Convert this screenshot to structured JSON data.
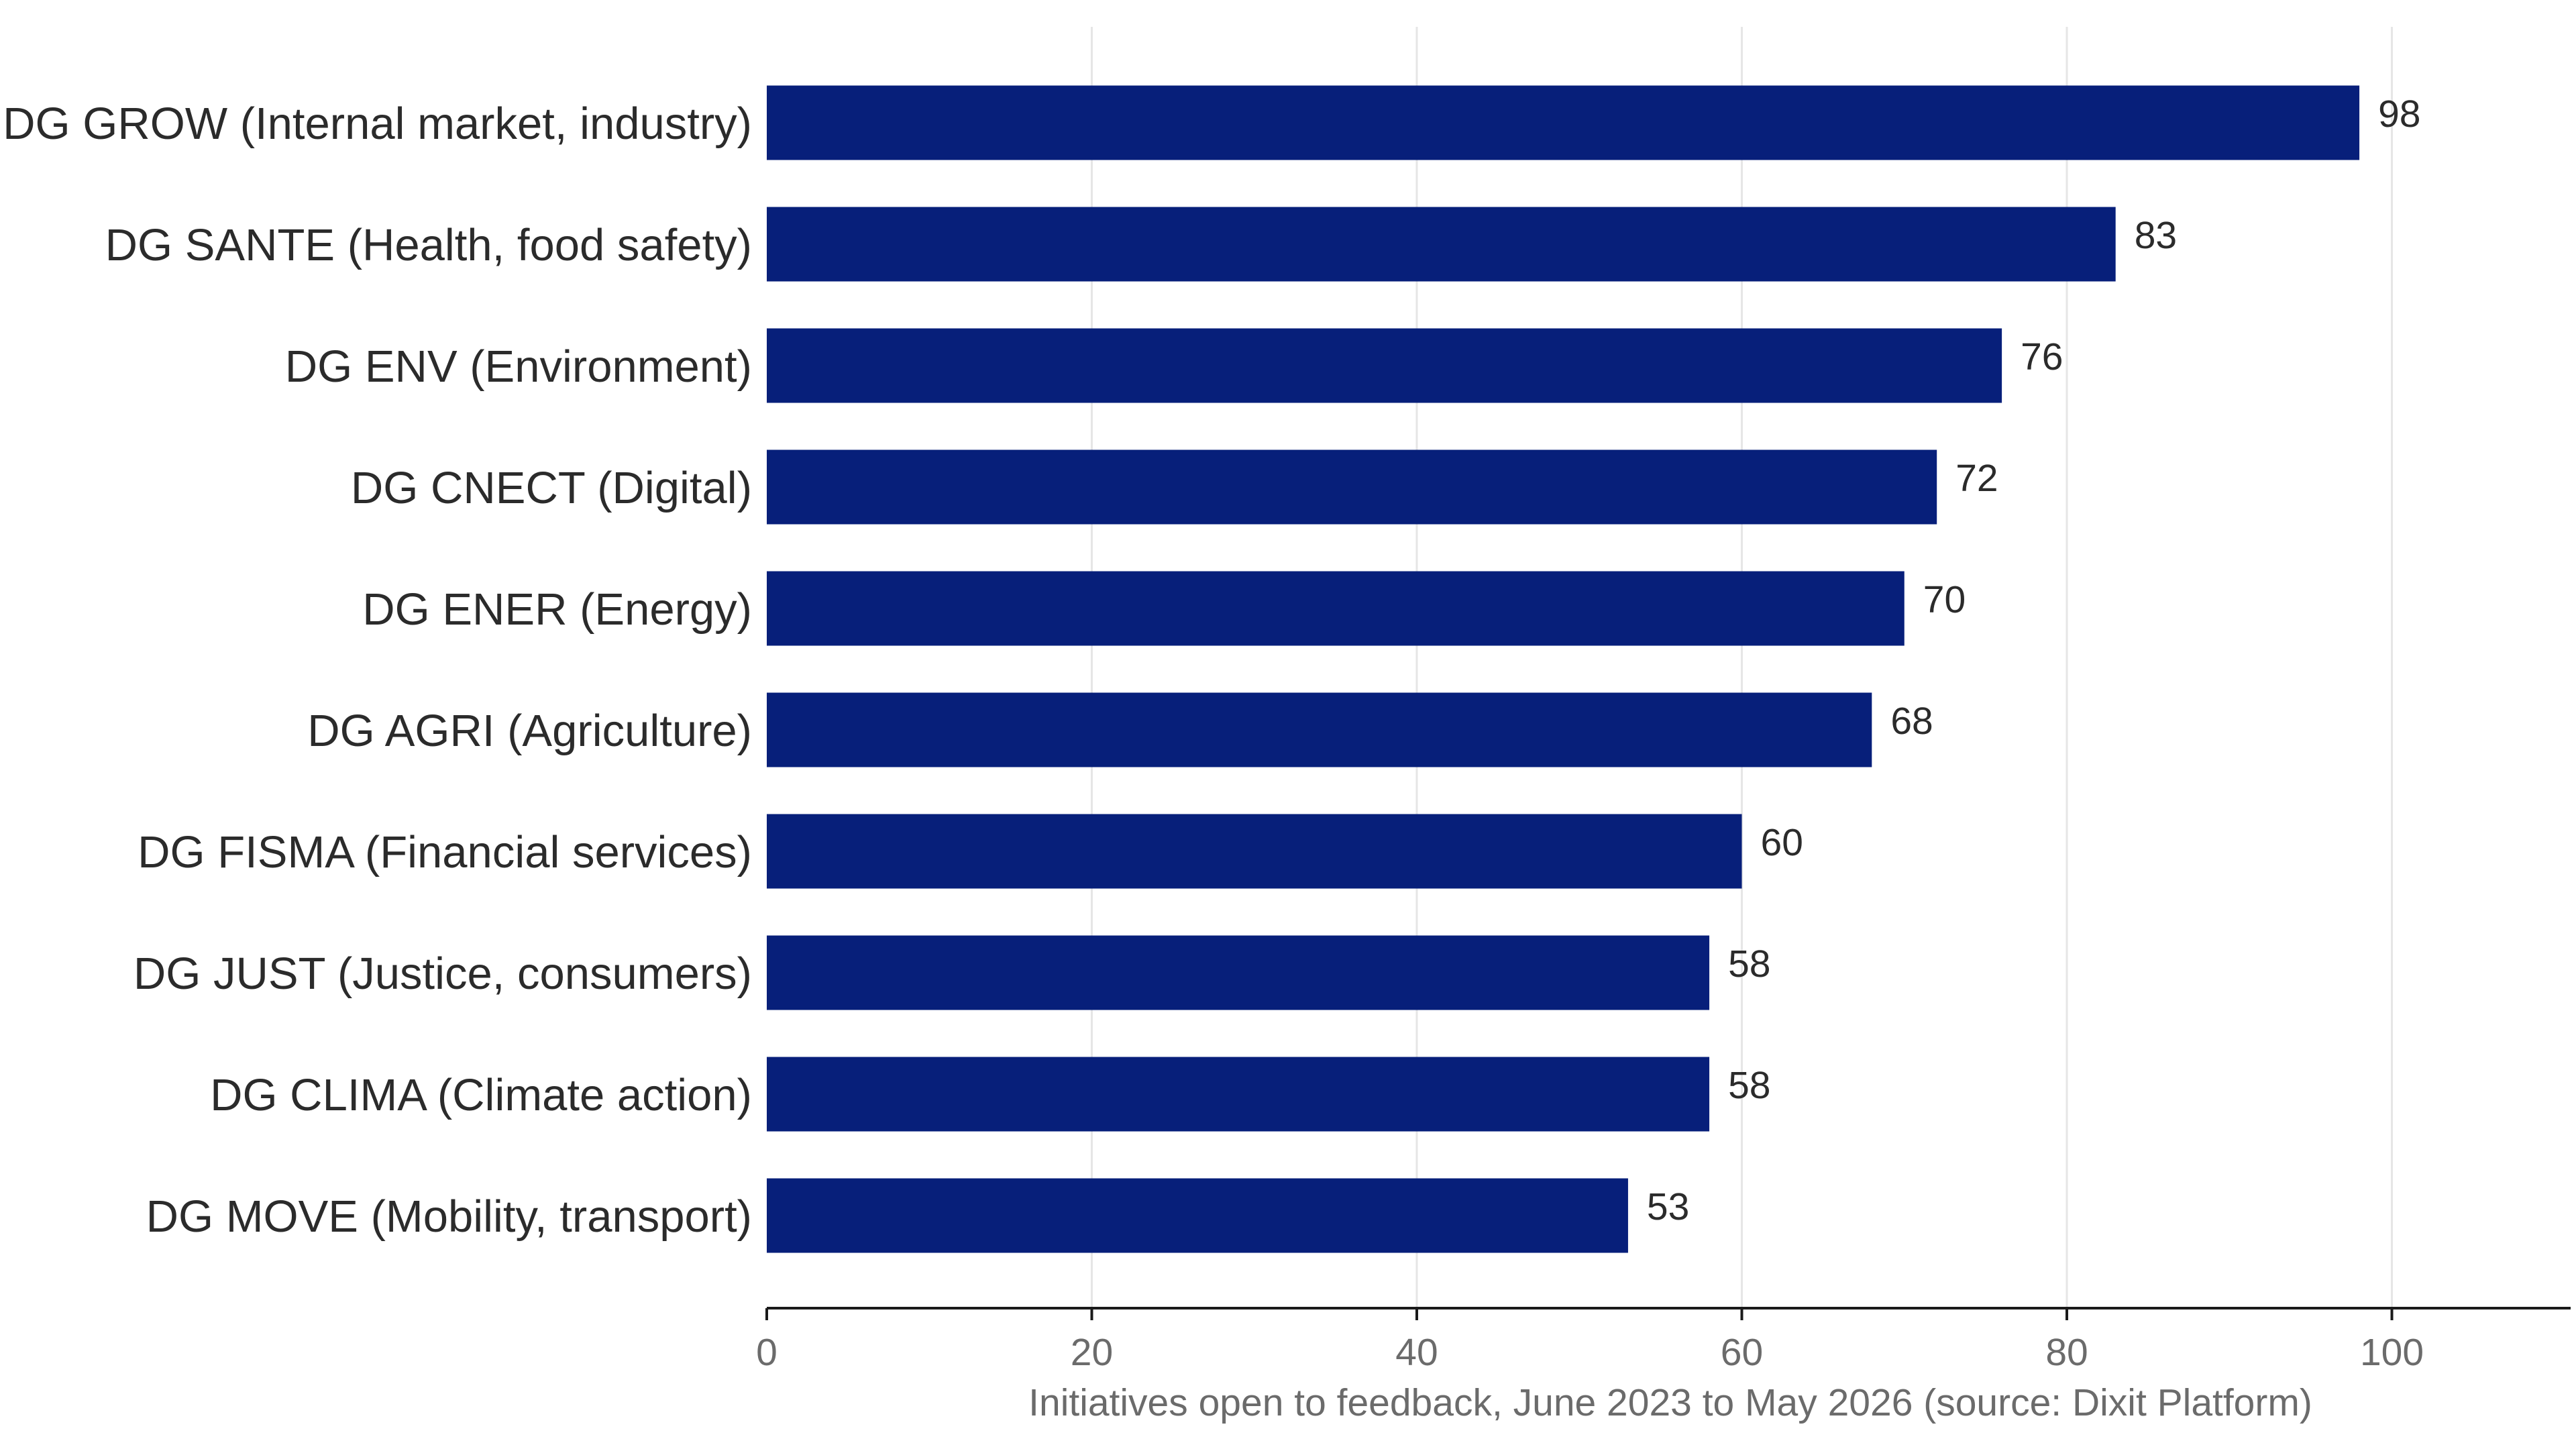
{
  "chart_data": {
    "type": "bar",
    "orientation": "horizontal",
    "categories": [
      "DG GROW (Internal market, industry)",
      "DG SANTE (Health, food safety)",
      "DG ENV (Environment)",
      "DG CNECT (Digital)",
      "DG ENER (Energy)",
      "DG AGRI (Agriculture)",
      "DG FISMA (Financial services)",
      "DG JUST (Justice, consumers)",
      "DG CLIMA (Climate action)",
      "DG MOVE (Mobility, transport)"
    ],
    "values": [
      98,
      83,
      76,
      72,
      70,
      68,
      60,
      58,
      58,
      53
    ],
    "value_labels": [
      "98",
      "83",
      "76",
      "72",
      "70",
      "68",
      "60",
      "58",
      "58",
      "53"
    ],
    "xlabel": "Initiatives open to feedback, June 2023 to May 2026 (source: Dixit Platform)",
    "ylabel": "",
    "xlim": [
      0,
      111
    ],
    "xticks": [
      0,
      20,
      40,
      60,
      80,
      100
    ],
    "xtick_labels": [
      "0",
      "20",
      "40",
      "60",
      "80",
      "100"
    ],
    "grid": "vertical",
    "legend": "none",
    "colors": {
      "bar": "#071f7a",
      "grid": "#e6e6e6",
      "axis": "#1a1a1a",
      "text": "#2b2b2b",
      "muted_text": "#6b6b6b"
    }
  }
}
